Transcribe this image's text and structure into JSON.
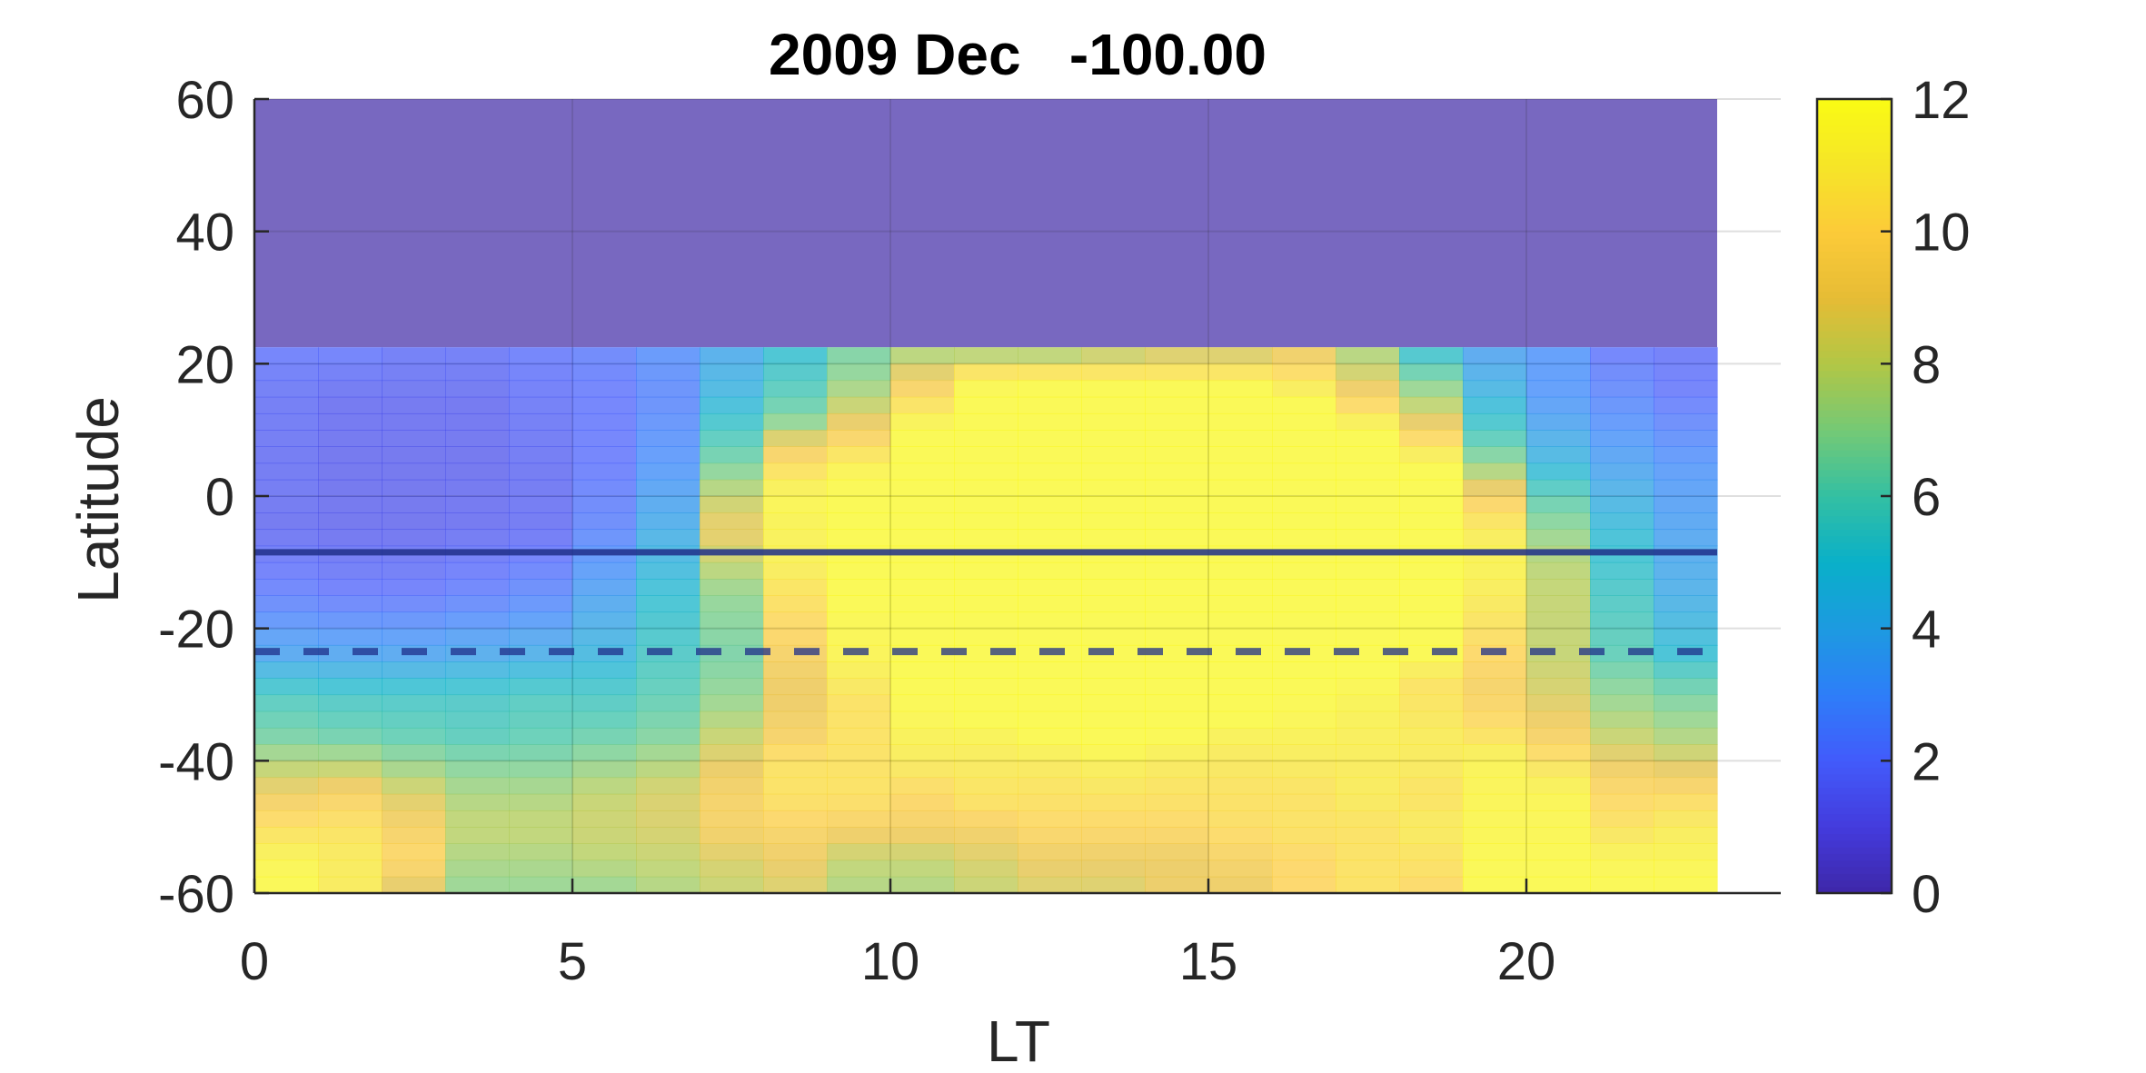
{
  "chart_data": {
    "type": "heatmap",
    "title": "2009 Dec   -100.00",
    "xlabel": "LT",
    "ylabel": "Latitude",
    "xlim": [
      0,
      24
    ],
    "ylim": [
      -60,
      60
    ],
    "xticks": [
      0,
      5,
      10,
      15,
      20
    ],
    "yticks": [
      -60,
      -40,
      -20,
      0,
      20,
      40,
      60
    ],
    "grid": true,
    "colorbar": {
      "clim": [
        0,
        12
      ],
      "ticks": [
        0,
        2,
        4,
        6,
        8,
        10,
        12
      ],
      "colormap": "parula"
    },
    "cell_lt_edges": [
      0,
      23
    ],
    "nan_region": {
      "lat_range": [
        22.5,
        60
      ],
      "color": "#7868c0"
    },
    "lines": [
      {
        "style": "solid",
        "latitude": -8.5
      },
      {
        "style": "dashed",
        "latitude": -23.5
      }
    ],
    "columns": [
      {
        "lt_start": 0,
        "profile": [
          [
            22,
            2
          ],
          [
            15,
            1.7
          ],
          [
            5,
            1.6
          ],
          [
            -5,
            1.5
          ],
          [
            -15,
            2.2
          ],
          [
            -24,
            3.6
          ],
          [
            -30,
            5.6
          ],
          [
            -36,
            6.4
          ],
          [
            -40,
            7.6
          ],
          [
            -44,
            8.8
          ],
          [
            -48,
            10
          ],
          [
            -55,
            11.5
          ],
          [
            -60,
            11.8
          ]
        ]
      },
      {
        "lt_start": 1,
        "profile": [
          [
            22,
            2
          ],
          [
            15,
            1.5
          ],
          [
            5,
            1.4
          ],
          [
            -5,
            1.4
          ],
          [
            -15,
            2
          ],
          [
            -24,
            3.6
          ],
          [
            -30,
            5.4
          ],
          [
            -36,
            6.2
          ],
          [
            -40,
            7.6
          ],
          [
            -45,
            9.5
          ],
          [
            -50,
            10.5
          ],
          [
            -55,
            11
          ],
          [
            -60,
            11
          ]
        ]
      },
      {
        "lt_start": 2,
        "profile": [
          [
            22,
            1.8
          ],
          [
            15,
            1.5
          ],
          [
            5,
            1.4
          ],
          [
            -5,
            1.4
          ],
          [
            -15,
            2
          ],
          [
            -24,
            3.6
          ],
          [
            -30,
            5.4
          ],
          [
            -36,
            6
          ],
          [
            -40,
            7
          ],
          [
            -45,
            8.5
          ],
          [
            -50,
            9.5
          ],
          [
            -55,
            10
          ],
          [
            -60,
            8.5
          ]
        ]
      },
      {
        "lt_start": 3,
        "profile": [
          [
            22,
            1.8
          ],
          [
            15,
            1.5
          ],
          [
            5,
            1.4
          ],
          [
            -5,
            1.5
          ],
          [
            -15,
            2.2
          ],
          [
            -24,
            3.8
          ],
          [
            -30,
            5.4
          ],
          [
            -36,
            5.8
          ],
          [
            -40,
            6.6
          ],
          [
            -45,
            7.5
          ],
          [
            -50,
            8
          ],
          [
            -55,
            7.5
          ],
          [
            -60,
            7
          ]
        ]
      },
      {
        "lt_start": 4,
        "profile": [
          [
            22,
            2
          ],
          [
            15,
            1.8
          ],
          [
            5,
            1.6
          ],
          [
            -5,
            1.6
          ],
          [
            -15,
            2.5
          ],
          [
            -24,
            4
          ],
          [
            -30,
            5.6
          ],
          [
            -36,
            6
          ],
          [
            -40,
            6.6
          ],
          [
            -45,
            7.5
          ],
          [
            -50,
            8
          ],
          [
            -55,
            7.5
          ],
          [
            -60,
            7
          ]
        ]
      },
      {
        "lt_start": 5,
        "profile": [
          [
            22,
            2.2
          ],
          [
            15,
            2
          ],
          [
            5,
            2
          ],
          [
            -5,
            2.4
          ],
          [
            -15,
            3.5
          ],
          [
            -24,
            4.5
          ],
          [
            -30,
            5.5
          ],
          [
            -36,
            6.2
          ],
          [
            -40,
            7
          ],
          [
            -45,
            8
          ],
          [
            -50,
            8.2
          ],
          [
            -55,
            7.8
          ],
          [
            -60,
            7
          ]
        ]
      },
      {
        "lt_start": 6,
        "profile": [
          [
            22,
            2.8
          ],
          [
            15,
            2.5
          ],
          [
            5,
            3
          ],
          [
            -5,
            4
          ],
          [
            -15,
            5
          ],
          [
            -24,
            5.5
          ],
          [
            -30,
            6
          ],
          [
            -36,
            6.6
          ],
          [
            -40,
            7.5
          ],
          [
            -45,
            8.5
          ],
          [
            -50,
            8.5
          ],
          [
            -55,
            8
          ],
          [
            -60,
            7.5
          ]
        ]
      },
      {
        "lt_start": 7,
        "profile": [
          [
            22,
            3.8
          ],
          [
            15,
            4.5
          ],
          [
            5,
            6.5
          ],
          [
            0,
            8
          ],
          [
            -5,
            9
          ],
          [
            -10,
            8
          ],
          [
            -15,
            7
          ],
          [
            -24,
            6.5
          ],
          [
            -30,
            7
          ],
          [
            -36,
            8
          ],
          [
            -40,
            8.8
          ],
          [
            -45,
            9.5
          ],
          [
            -50,
            9.5
          ],
          [
            -55,
            8.5
          ],
          [
            -60,
            8
          ]
        ]
      },
      {
        "lt_start": 8,
        "profile": [
          [
            22,
            5
          ],
          [
            18,
            5.5
          ],
          [
            12,
            6.5
          ],
          [
            8,
            9
          ],
          [
            4,
            10.5
          ],
          [
            0,
            11.6
          ],
          [
            -10,
            11.2
          ],
          [
            -15,
            10.5
          ],
          [
            -20,
            10
          ],
          [
            -24,
            9.5
          ],
          [
            -30,
            9
          ],
          [
            -36,
            9.5
          ],
          [
            -40,
            10.5
          ],
          [
            -45,
            10.5
          ],
          [
            -50,
            9.8
          ],
          [
            -55,
            9
          ],
          [
            -60,
            8.5
          ]
        ]
      },
      {
        "lt_start": 9,
        "profile": [
          [
            22,
            6.5
          ],
          [
            18,
            7
          ],
          [
            14,
            8
          ],
          [
            8,
            10
          ],
          [
            4,
            11.5
          ],
          [
            0,
            11.8
          ],
          [
            -15,
            11.8
          ],
          [
            -24,
            11.5
          ],
          [
            -28,
            11
          ],
          [
            -30,
            10.5
          ],
          [
            -40,
            10.5
          ],
          [
            -45,
            10.5
          ],
          [
            -50,
            9.5
          ],
          [
            -55,
            8
          ],
          [
            -60,
            7.5
          ]
        ]
      },
      {
        "lt_start": 10,
        "profile": [
          [
            22,
            7.5
          ],
          [
            18,
            9
          ],
          [
            14,
            10.5
          ],
          [
            10,
            11.8
          ],
          [
            -30,
            11.8
          ],
          [
            -35,
            11.5
          ],
          [
            -40,
            11
          ],
          [
            -45,
            10
          ],
          [
            -50,
            9.5
          ],
          [
            -55,
            8
          ],
          [
            -60,
            7.5
          ]
        ]
      },
      {
        "lt_start": 11,
        "profile": [
          [
            22,
            7
          ],
          [
            19,
            10.5
          ],
          [
            16,
            11.8
          ],
          [
            -34,
            11.8
          ],
          [
            -38,
            11.2
          ],
          [
            -42,
            10.8
          ],
          [
            -46,
            10.5
          ],
          [
            -50,
            9.5
          ],
          [
            -55,
            8.5
          ],
          [
            -60,
            8
          ]
        ]
      },
      {
        "lt_start": 12,
        "profile": [
          [
            22,
            7
          ],
          [
            19,
            10.5
          ],
          [
            17,
            11.8
          ],
          [
            -36,
            11.8
          ],
          [
            -40,
            11
          ],
          [
            -45,
            10.5
          ],
          [
            -50,
            10
          ],
          [
            -55,
            9
          ],
          [
            -60,
            8.5
          ]
        ]
      },
      {
        "lt_start": 13,
        "profile": [
          [
            22,
            7.5
          ],
          [
            19,
            10.5
          ],
          [
            17,
            11.8
          ],
          [
            -38,
            11.8
          ],
          [
            -42,
            11
          ],
          [
            -46,
            10.5
          ],
          [
            -50,
            10
          ],
          [
            -55,
            9
          ],
          [
            -60,
            8.5
          ]
        ]
      },
      {
        "lt_start": 14,
        "profile": [
          [
            22,
            8
          ],
          [
            19,
            10.5
          ],
          [
            17,
            11.8
          ],
          [
            -36,
            11.8
          ],
          [
            -40,
            11
          ],
          [
            -45,
            10.5
          ],
          [
            -50,
            10
          ],
          [
            -55,
            9
          ],
          [
            -60,
            9
          ]
        ]
      },
      {
        "lt_start": 15,
        "profile": [
          [
            22,
            8
          ],
          [
            19,
            10.5
          ],
          [
            17,
            11.8
          ],
          [
            -34,
            11.8
          ],
          [
            -38,
            11
          ],
          [
            -45,
            10.5
          ],
          [
            -50,
            10.3
          ],
          [
            -55,
            9.5
          ],
          [
            -60,
            9
          ]
        ]
      },
      {
        "lt_start": 16,
        "profile": [
          [
            22,
            9
          ],
          [
            18,
            10.5
          ],
          [
            14,
            11.8
          ],
          [
            -30,
            11.8
          ],
          [
            -35,
            11.5
          ],
          [
            -40,
            11
          ],
          [
            -45,
            10.5
          ],
          [
            -50,
            10.5
          ],
          [
            -55,
            10
          ],
          [
            -60,
            10
          ]
        ]
      },
      {
        "lt_start": 17,
        "profile": [
          [
            22,
            7.5
          ],
          [
            18,
            8.5
          ],
          [
            14,
            10
          ],
          [
            10,
            11.8
          ],
          [
            -26,
            11.8
          ],
          [
            -30,
            11.5
          ],
          [
            -40,
            11
          ],
          [
            -45,
            11
          ],
          [
            -50,
            10.5
          ],
          [
            -55,
            10.5
          ],
          [
            -60,
            10.5
          ]
        ]
      },
      {
        "lt_start": 18,
        "profile": [
          [
            22,
            5
          ],
          [
            18,
            6.5
          ],
          [
            12,
            8.5
          ],
          [
            8,
            10.5
          ],
          [
            4,
            11.8
          ],
          [
            -24,
            11.8
          ],
          [
            -28,
            10.5
          ],
          [
            -36,
            11
          ],
          [
            -40,
            11
          ],
          [
            -45,
            10.5
          ],
          [
            -50,
            11
          ],
          [
            -55,
            10.5
          ],
          [
            -60,
            10
          ]
        ]
      },
      {
        "lt_start": 19,
        "profile": [
          [
            22,
            3.5
          ],
          [
            18,
            4
          ],
          [
            10,
            5.5
          ],
          [
            5,
            7
          ],
          [
            0,
            9.5
          ],
          [
            -5,
            11
          ],
          [
            -10,
            11.5
          ],
          [
            -15,
            11
          ],
          [
            -20,
            10.5
          ],
          [
            -24,
            10
          ],
          [
            -30,
            9.5
          ],
          [
            -36,
            10.5
          ],
          [
            -40,
            11.5
          ],
          [
            -45,
            11.5
          ],
          [
            -60,
            11.8
          ]
        ]
      },
      {
        "lt_start": 20,
        "profile": [
          [
            22,
            3
          ],
          [
            15,
            3
          ],
          [
            5,
            4.5
          ],
          [
            0,
            6
          ],
          [
            -5,
            7
          ],
          [
            -10,
            7.8
          ],
          [
            -15,
            8
          ],
          [
            -24,
            8
          ],
          [
            -30,
            8.5
          ],
          [
            -36,
            9.5
          ],
          [
            -40,
            10.5
          ],
          [
            -45,
            11.5
          ],
          [
            -60,
            11.8
          ]
        ]
      },
      {
        "lt_start": 21,
        "profile": [
          [
            22,
            2
          ],
          [
            15,
            2.5
          ],
          [
            5,
            3.5
          ],
          [
            -5,
            4.8
          ],
          [
            -15,
            5.5
          ],
          [
            -24,
            6
          ],
          [
            -30,
            7
          ],
          [
            -36,
            8
          ],
          [
            -40,
            9
          ],
          [
            -45,
            10
          ],
          [
            -50,
            10.5
          ],
          [
            -55,
            11.5
          ],
          [
            -60,
            11.8
          ]
        ]
      },
      {
        "lt_start": 22,
        "profile": [
          [
            22,
            1.8
          ],
          [
            15,
            2
          ],
          [
            5,
            3
          ],
          [
            -5,
            3.5
          ],
          [
            -15,
            4
          ],
          [
            -24,
            5
          ],
          [
            -30,
            6.5
          ],
          [
            -36,
            7.5
          ],
          [
            -40,
            8.5
          ],
          [
            -45,
            10
          ],
          [
            -50,
            11
          ],
          [
            -55,
            11.5
          ],
          [
            -60,
            11.8
          ]
        ]
      }
    ]
  }
}
